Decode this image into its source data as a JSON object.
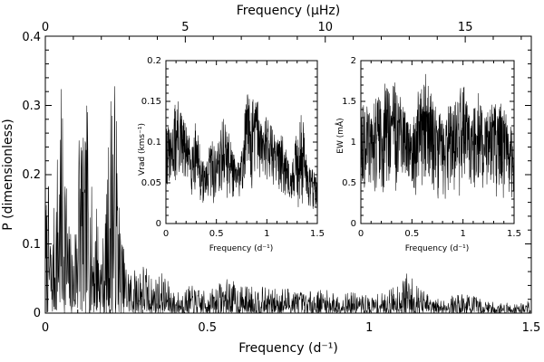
{
  "chart_data": [
    {
      "id": "main",
      "type": "line",
      "xlabel": "Frequency (d⁻¹)",
      "ylabel": "P (dimensionless)",
      "xlabel_top": "Frequency (μHz)",
      "xlim": [
        0,
        1.5
      ],
      "ylim": [
        0,
        0.4
      ],
      "xticks": [
        "0",
        "0.5",
        "1",
        "1.5"
      ],
      "yticks": [
        "0",
        "0.1",
        "0.2",
        "0.3",
        "0.4"
      ],
      "top_xticks": [
        "0",
        "5",
        "10",
        "15"
      ],
      "top_xlim": [
        0,
        17.36
      ],
      "envelope": {
        "x": [
          0.0,
          0.01,
          0.02,
          0.03,
          0.04,
          0.05,
          0.06,
          0.07,
          0.08,
          0.09,
          0.1,
          0.11,
          0.12,
          0.13,
          0.14,
          0.15,
          0.16,
          0.17,
          0.18,
          0.19,
          0.2,
          0.21,
          0.22,
          0.23,
          0.24,
          0.25,
          0.27,
          0.3,
          0.33,
          0.36,
          0.4,
          0.45,
          0.5,
          0.55,
          0.57,
          0.6,
          0.65,
          0.7,
          0.75,
          0.8,
          0.85,
          0.9,
          0.95,
          1.0,
          1.05,
          1.1,
          1.12,
          1.15,
          1.2,
          1.25,
          1.3,
          1.35,
          1.4,
          1.45,
          1.5
        ],
        "y": [
          0.17,
          0.19,
          0.1,
          0.18,
          0.28,
          0.33,
          0.3,
          0.14,
          0.12,
          0.1,
          0.3,
          0.34,
          0.22,
          0.33,
          0.2,
          0.15,
          0.18,
          0.1,
          0.12,
          0.18,
          0.34,
          0.37,
          0.3,
          0.15,
          0.1,
          0.08,
          0.06,
          0.08,
          0.05,
          0.06,
          0.03,
          0.04,
          0.03,
          0.05,
          0.05,
          0.04,
          0.04,
          0.035,
          0.04,
          0.03,
          0.035,
          0.03,
          0.03,
          0.025,
          0.03,
          0.05,
          0.06,
          0.04,
          0.02,
          0.025,
          0.03,
          0.02,
          0.015,
          0.015,
          0.02
        ]
      }
    },
    {
      "id": "inset-vrad",
      "type": "line",
      "xlabel": "Frequency (d⁻¹)",
      "ylabel": "Vrad (kms⁻¹)",
      "xlim": [
        0,
        1.5
      ],
      "ylim": [
        0,
        0.2
      ],
      "xticks": [
        "0",
        "0.5",
        "1",
        "1.5"
      ],
      "yticks": [
        "0",
        "0.05",
        "0.1",
        "0.15",
        "0.2"
      ],
      "envelope": {
        "x": [
          0.0,
          0.05,
          0.1,
          0.15,
          0.2,
          0.25,
          0.3,
          0.35,
          0.4,
          0.45,
          0.5,
          0.55,
          0.6,
          0.65,
          0.7,
          0.75,
          0.8,
          0.85,
          0.9,
          0.95,
          1.0,
          1.05,
          1.1,
          1.15,
          1.2,
          1.25,
          1.3,
          1.35,
          1.4,
          1.45,
          1.5
        ],
        "y": [
          0.13,
          0.11,
          0.16,
          0.14,
          0.12,
          0.1,
          0.13,
          0.08,
          0.07,
          0.11,
          0.09,
          0.14,
          0.12,
          0.1,
          0.07,
          0.09,
          0.17,
          0.15,
          0.16,
          0.12,
          0.14,
          0.12,
          0.1,
          0.13,
          0.08,
          0.07,
          0.12,
          0.14,
          0.08,
          0.07,
          0.06
        ]
      },
      "floor": {
        "x": [
          0.0,
          0.1,
          0.2,
          0.3,
          0.4,
          0.5,
          0.6,
          0.7,
          0.8,
          0.9,
          1.0,
          1.1,
          1.2,
          1.3,
          1.4,
          1.5
        ],
        "y": [
          0.04,
          0.035,
          0.04,
          0.03,
          0.02,
          0.02,
          0.03,
          0.03,
          0.03,
          0.05,
          0.05,
          0.04,
          0.03,
          0.02,
          0.02,
          0.01
        ]
      }
    },
    {
      "id": "inset-ew",
      "type": "line",
      "xlabel": "Frequency (d⁻¹)",
      "ylabel": "EW (mÅ)",
      "xlim": [
        0,
        1.5
      ],
      "ylim": [
        0,
        2
      ],
      "xticks": [
        "0",
        "0.5",
        "1",
        "1.5"
      ],
      "yticks": [
        "0",
        "0.5",
        "1",
        "1.5",
        "2"
      ],
      "envelope": {
        "x": [
          0.0,
          0.05,
          0.1,
          0.15,
          0.2,
          0.25,
          0.3,
          0.35,
          0.4,
          0.45,
          0.5,
          0.55,
          0.6,
          0.65,
          0.7,
          0.75,
          0.8,
          0.85,
          0.9,
          0.95,
          1.0,
          1.05,
          1.1,
          1.15,
          1.2,
          1.25,
          1.3,
          1.35,
          1.4,
          1.45,
          1.5
        ],
        "y": [
          1.4,
          1.5,
          1.3,
          1.6,
          1.5,
          1.8,
          1.6,
          1.9,
          1.5,
          1.4,
          1.2,
          1.6,
          1.7,
          1.9,
          1.5,
          1.4,
          1.3,
          1.5,
          1.4,
          1.6,
          1.8,
          1.5,
          1.5,
          1.7,
          1.3,
          1.4,
          1.5,
          1.6,
          1.4,
          1.3,
          1.1
        ]
      },
      "floor": {
        "x": [
          0.0,
          0.15,
          0.3,
          0.45,
          0.6,
          0.75,
          0.9,
          1.05,
          1.2,
          1.35,
          1.5
        ],
        "y": [
          0.4,
          0.35,
          0.4,
          0.3,
          0.35,
          0.25,
          0.35,
          0.3,
          0.35,
          0.3,
          0.25
        ]
      }
    }
  ]
}
